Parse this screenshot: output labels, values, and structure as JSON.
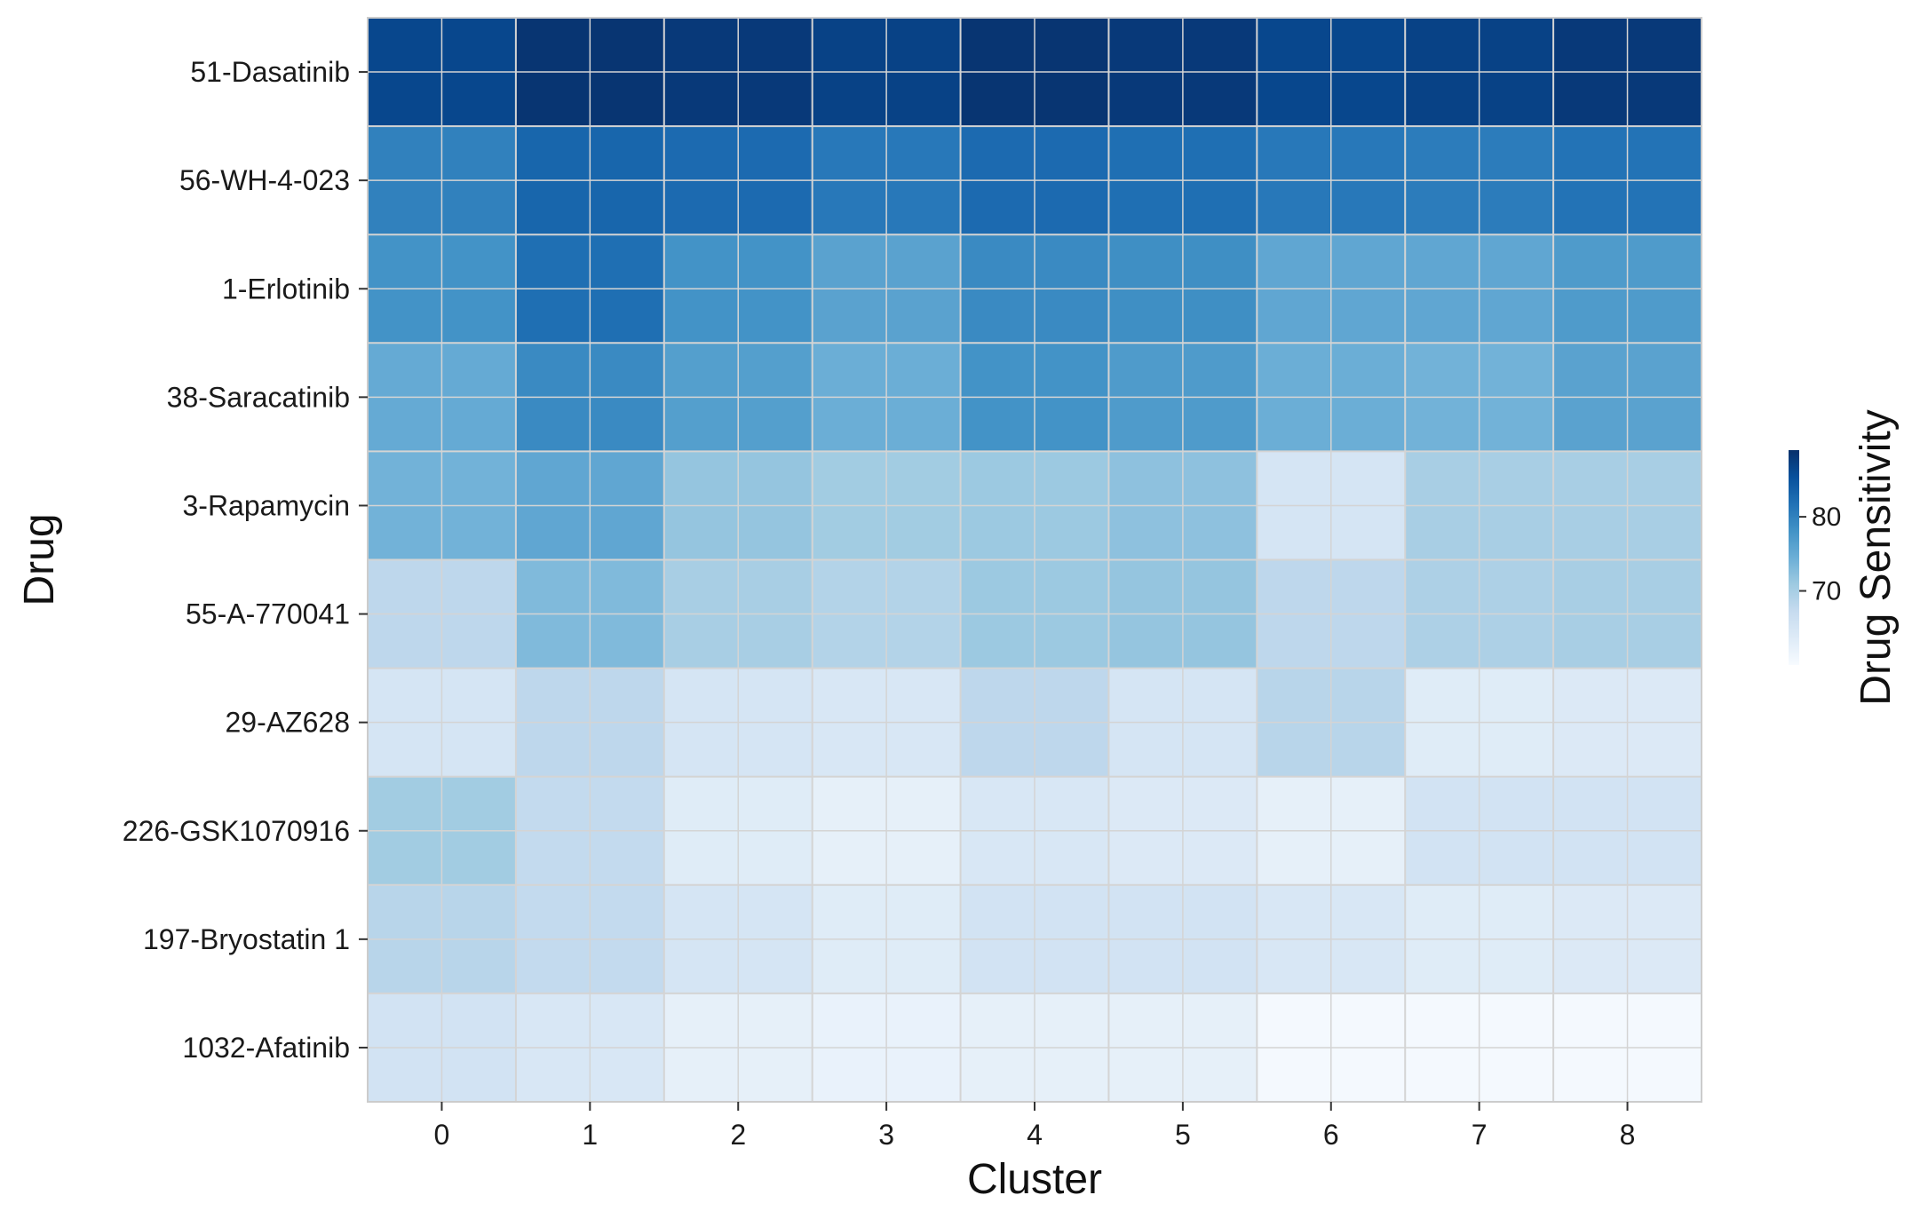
{
  "chart_data": {
    "type": "heatmap",
    "title": "",
    "xlabel": "Cluster",
    "ylabel": "Drug",
    "x_categories": [
      "0",
      "1",
      "2",
      "3",
      "4",
      "5",
      "6",
      "7",
      "8"
    ],
    "y_categories": [
      "51-Dasatinib",
      "56-WH-4-023",
      "1-Erlotinib",
      "38-Saracatinib",
      "3-Rapamycin",
      "55-A-770041",
      "29-AZ628",
      "226-GSK1070916",
      "197-Bryostatin 1",
      "1032-Afatinib"
    ],
    "values": [
      [
        86.5,
        88.5,
        88.0,
        87.0,
        88.5,
        88.0,
        86.5,
        87.0,
        88.0
      ],
      [
        80.0,
        83.0,
        82.5,
        81.0,
        82.5,
        82.0,
        81.0,
        80.5,
        81.5
      ],
      [
        78.0,
        82.0,
        78.0,
        76.0,
        79.0,
        78.5,
        75.5,
        75.5,
        77.0
      ],
      [
        75.0,
        79.0,
        76.5,
        74.5,
        78.0,
        77.0,
        74.5,
        74.0,
        76.0
      ],
      [
        74.0,
        75.5,
        71.5,
        70.5,
        71.0,
        72.0,
        65.0,
        70.0,
        70.0
      ],
      [
        68.0,
        73.0,
        70.0,
        69.0,
        71.0,
        71.5,
        68.0,
        69.5,
        70.0
      ],
      [
        65.0,
        68.0,
        65.0,
        64.5,
        68.0,
        65.0,
        68.5,
        63.5,
        64.0
      ],
      [
        70.5,
        67.5,
        63.5,
        62.5,
        64.5,
        64.0,
        62.5,
        65.5,
        65.5
      ],
      [
        68.5,
        67.5,
        65.0,
        63.5,
        65.5,
        65.5,
        64.5,
        63.5,
        64.0
      ],
      [
        65.5,
        64.5,
        62.5,
        62.0,
        62.5,
        62.5,
        60.5,
        60.5,
        60.5
      ]
    ],
    "colorbar": {
      "label": "Drug Sensitivity",
      "min": 60.0,
      "max": 89.0,
      "ticks": [
        70,
        80
      ],
      "colormap": "Blues",
      "colors": [
        "#f7fbff",
        "#deebf7",
        "#c6dbef",
        "#9ecae1",
        "#6baed6",
        "#4292c6",
        "#2171b5",
        "#08519c",
        "#08306b"
      ]
    },
    "cell_border_color": "#d4d4d4",
    "frame_color": "#cccccc",
    "grid": true
  }
}
